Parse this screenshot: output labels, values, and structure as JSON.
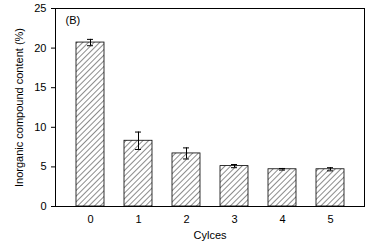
{
  "chart_data": {
    "type": "bar",
    "annotation": "(B)",
    "x_label": "Cylces",
    "y_label": "Inorganic compound content (%)",
    "categories": [
      "0",
      "1",
      "2",
      "3",
      "4",
      "5"
    ],
    "values": [
      20.7,
      8.3,
      6.7,
      5.1,
      4.7,
      4.7
    ],
    "errors": [
      0.4,
      1.1,
      0.7,
      0.2,
      0.1,
      0.2
    ],
    "color": "#6e6e6e",
    "ylim": [
      0,
      25
    ],
    "yticks": [
      0,
      5,
      10,
      15,
      20,
      25
    ],
    "grid": false
  }
}
